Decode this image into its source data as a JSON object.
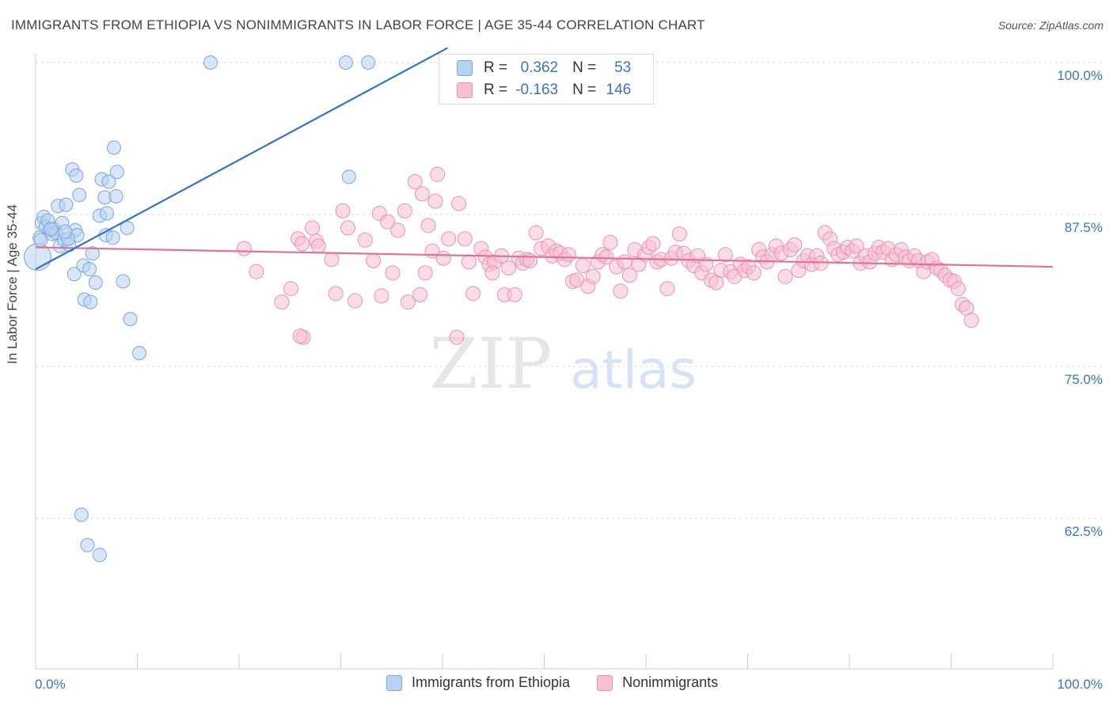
{
  "title": "IMMIGRANTS FROM ETHIOPIA VS NONIMMIGRANTS IN LABOR FORCE | AGE 35-44 CORRELATION CHART",
  "source": "Source: ZipAtlas.com",
  "watermark": {
    "zip": "ZIP",
    "atlas": "atlas"
  },
  "legend_stats": [
    {
      "r_label": "R =",
      "r_value": "0.362",
      "n_label": "N =",
      "n_value": "53"
    },
    {
      "r_label": "R =",
      "r_value": "-0.163",
      "n_label": "N =",
      "n_value": "146"
    }
  ],
  "legend": [
    "Immigrants from Ethiopia",
    "Nonimmigrants"
  ],
  "colors": {
    "blue_fill": "#b8d2f2",
    "blue_stroke": "#7aa6dc",
    "blue_line": "#2f74c8",
    "pink_fill": "#f6c0d2",
    "pink_stroke": "#e993b0",
    "pink_line": "#e2709a",
    "tick_label": "#3a72c8",
    "grid": "#d9d9d9"
  },
  "chart_data": {
    "type": "scatter",
    "title": "IMMIGRANTS FROM ETHIOPIA VS NONIMMIGRANTS IN LABOR FORCE | AGE 35-44 CORRELATION CHART",
    "xlabel": "",
    "ylabel": "In Labor Force | Age 35-44",
    "xlim": [
      0,
      100
    ],
    "ylim": [
      50,
      102
    ],
    "x_tick_labels": [
      "0.0%",
      "100.0%"
    ],
    "y_ticks": [
      100,
      87.5,
      75,
      62.5
    ],
    "y_tick_labels": [
      "100.0%",
      "87.5%",
      "75.0%",
      "62.5%"
    ],
    "series": [
      {
        "name": "Immigrants from Ethiopia",
        "r": 0.362,
        "n": 53,
        "trend": {
          "x": [
            0,
            40.5
          ],
          "y": [
            83.0,
            101.2
          ]
        },
        "points": [
          [
            0.2,
            84.0
          ],
          [
            0.4,
            85.6
          ],
          [
            0.5,
            85.4
          ],
          [
            0.6,
            86.8
          ],
          [
            0.8,
            87.3
          ],
          [
            1.0,
            86.5
          ],
          [
            1.2,
            87.0
          ],
          [
            1.4,
            86.2
          ],
          [
            1.6,
            85.9
          ],
          [
            1.8,
            86.3
          ],
          [
            2.0,
            86.0
          ],
          [
            2.2,
            88.2
          ],
          [
            2.4,
            84.9
          ],
          [
            2.6,
            86.8
          ],
          [
            2.8,
            85.4
          ],
          [
            3.0,
            88.3
          ],
          [
            3.3,
            85.0
          ],
          [
            3.6,
            91.2
          ],
          [
            3.8,
            82.6
          ],
          [
            3.9,
            86.2
          ],
          [
            4.0,
            90.7
          ],
          [
            4.1,
            85.8
          ],
          [
            4.3,
            89.1
          ],
          [
            4.7,
            83.3
          ],
          [
            4.8,
            80.5
          ],
          [
            5.3,
            83.0
          ],
          [
            5.4,
            80.3
          ],
          [
            5.6,
            84.3
          ],
          [
            5.9,
            81.9
          ],
          [
            6.3,
            87.4
          ],
          [
            6.5,
            90.4
          ],
          [
            6.8,
            88.9
          ],
          [
            6.9,
            85.8
          ],
          [
            7.0,
            87.6
          ],
          [
            7.2,
            90.2
          ],
          [
            7.6,
            85.6
          ],
          [
            7.7,
            93.0
          ],
          [
            7.9,
            89.0
          ],
          [
            8.0,
            91.0
          ],
          [
            8.6,
            82.0
          ],
          [
            9.0,
            86.4
          ],
          [
            9.3,
            78.9
          ],
          [
            10.2,
            76.1
          ],
          [
            17.2,
            100.0
          ],
          [
            30.8,
            90.6
          ],
          [
            30.5,
            100.0
          ],
          [
            32.7,
            100.0
          ],
          [
            4.5,
            62.8
          ],
          [
            5.1,
            60.3
          ],
          [
            6.3,
            59.5
          ],
          [
            1.5,
            86.3
          ],
          [
            3.2,
            85.5
          ],
          [
            2.9,
            86.1
          ]
        ]
      },
      {
        "name": "Nonimmigrants",
        "r": -0.163,
        "n": 146,
        "trend": {
          "x": [
            0,
            100
          ],
          "y": [
            84.8,
            83.2
          ]
        },
        "points": [
          [
            21.7,
            82.8
          ],
          [
            24.2,
            80.3
          ],
          [
            25.1,
            81.4
          ],
          [
            25.8,
            85.5
          ],
          [
            26.2,
            85.1
          ],
          [
            26.3,
            77.4
          ],
          [
            27.2,
            86.4
          ],
          [
            27.6,
            85.3
          ],
          [
            29.1,
            83.8
          ],
          [
            29.5,
            81.0
          ],
          [
            30.2,
            87.8
          ],
          [
            30.7,
            86.4
          ],
          [
            31.4,
            80.4
          ],
          [
            32.4,
            85.4
          ],
          [
            33.2,
            83.7
          ],
          [
            33.8,
            87.6
          ],
          [
            34.0,
            80.8
          ],
          [
            34.6,
            86.9
          ],
          [
            35.1,
            82.7
          ],
          [
            35.6,
            86.2
          ],
          [
            36.3,
            87.8
          ],
          [
            36.6,
            80.3
          ],
          [
            37.3,
            90.2
          ],
          [
            38.0,
            89.2
          ],
          [
            38.6,
            86.6
          ],
          [
            39.0,
            84.5
          ],
          [
            39.3,
            88.6
          ],
          [
            39.5,
            90.8
          ],
          [
            40.1,
            83.9
          ],
          [
            40.6,
            85.5
          ],
          [
            41.6,
            88.4
          ],
          [
            42.2,
            85.5
          ],
          [
            41.4,
            77.4
          ],
          [
            42.6,
            83.6
          ],
          [
            43.0,
            81.0
          ],
          [
            43.8,
            84.7
          ],
          [
            44.2,
            84.0
          ],
          [
            44.6,
            83.4
          ],
          [
            45.1,
            83.6
          ],
          [
            45.8,
            84.1
          ],
          [
            46.1,
            80.9
          ],
          [
            46.5,
            83.1
          ],
          [
            47.1,
            80.9
          ],
          [
            47.5,
            83.9
          ],
          [
            47.9,
            83.5
          ],
          [
            48.3,
            83.8
          ],
          [
            48.6,
            83.7
          ],
          [
            49.2,
            86.0
          ],
          [
            49.7,
            84.7
          ],
          [
            50.4,
            84.9
          ],
          [
            50.8,
            84.1
          ],
          [
            51.2,
            84.5
          ],
          [
            51.6,
            84.3
          ],
          [
            52.0,
            83.8
          ],
          [
            52.4,
            84.2
          ],
          [
            52.8,
            82.0
          ],
          [
            53.2,
            82.1
          ],
          [
            53.8,
            83.3
          ],
          [
            54.3,
            81.6
          ],
          [
            54.8,
            82.4
          ],
          [
            55.3,
            83.6
          ],
          [
            55.7,
            84.2
          ],
          [
            56.1,
            84.0
          ],
          [
            56.5,
            85.2
          ],
          [
            57.1,
            83.2
          ],
          [
            57.5,
            81.2
          ],
          [
            57.9,
            83.6
          ],
          [
            58.4,
            82.5
          ],
          [
            58.9,
            84.6
          ],
          [
            59.3,
            83.4
          ],
          [
            59.9,
            84.2
          ],
          [
            60.3,
            84.8
          ],
          [
            60.7,
            85.1
          ],
          [
            61.1,
            83.6
          ],
          [
            61.5,
            83.8
          ],
          [
            62.1,
            81.4
          ],
          [
            62.5,
            83.9
          ],
          [
            62.9,
            84.4
          ],
          [
            63.3,
            85.9
          ],
          [
            63.7,
            84.3
          ],
          [
            64.2,
            83.7
          ],
          [
            64.7,
            83.3
          ],
          [
            65.1,
            84.1
          ],
          [
            65.5,
            82.7
          ],
          [
            65.9,
            83.4
          ],
          [
            66.4,
            82.1
          ],
          [
            66.9,
            81.9
          ],
          [
            67.4,
            82.9
          ],
          [
            67.8,
            84.2
          ],
          [
            68.3,
            82.8
          ],
          [
            68.7,
            82.4
          ],
          [
            69.3,
            83.4
          ],
          [
            69.7,
            82.9
          ],
          [
            70.1,
            83.2
          ],
          [
            70.6,
            82.7
          ],
          [
            71.1,
            84.6
          ],
          [
            71.5,
            84.0
          ],
          [
            71.9,
            83.6
          ],
          [
            72.4,
            84.2
          ],
          [
            72.8,
            84.9
          ],
          [
            73.3,
            84.3
          ],
          [
            73.7,
            82.4
          ],
          [
            74.2,
            84.6
          ],
          [
            74.6,
            85.0
          ],
          [
            75.0,
            82.9
          ],
          [
            75.5,
            83.7
          ],
          [
            75.9,
            84.1
          ],
          [
            76.3,
            83.4
          ],
          [
            76.8,
            84.1
          ],
          [
            77.2,
            83.5
          ],
          [
            77.6,
            86.0
          ],
          [
            78.1,
            85.5
          ],
          [
            78.5,
            84.7
          ],
          [
            78.9,
            84.2
          ],
          [
            79.4,
            84.4
          ],
          [
            79.8,
            84.8
          ],
          [
            80.3,
            84.5
          ],
          [
            80.7,
            84.9
          ],
          [
            81.1,
            83.5
          ],
          [
            81.6,
            84.1
          ],
          [
            82.0,
            83.6
          ],
          [
            82.5,
            84.3
          ],
          [
            82.9,
            84.8
          ],
          [
            83.3,
            84.4
          ],
          [
            83.8,
            84.7
          ],
          [
            84.2,
            83.8
          ],
          [
            84.6,
            84.2
          ],
          [
            85.1,
            84.6
          ],
          [
            85.5,
            84.0
          ],
          [
            85.9,
            83.7
          ],
          [
            86.4,
            84.1
          ],
          [
            86.8,
            83.7
          ],
          [
            87.3,
            82.8
          ],
          [
            87.7,
            83.6
          ],
          [
            88.1,
            83.8
          ],
          [
            88.6,
            83.1
          ],
          [
            89.0,
            82.9
          ],
          [
            89.4,
            82.5
          ],
          [
            89.9,
            82.1
          ],
          [
            90.3,
            82.0
          ],
          [
            90.7,
            81.4
          ],
          [
            91.1,
            80.1
          ],
          [
            91.5,
            79.8
          ],
          [
            92.0,
            78.8
          ],
          [
            20.5,
            84.7
          ],
          [
            26.0,
            77.5
          ],
          [
            27.8,
            84.9
          ],
          [
            38.3,
            82.7
          ],
          [
            44.9,
            82.7
          ],
          [
            37.8,
            80.9
          ]
        ]
      }
    ]
  }
}
